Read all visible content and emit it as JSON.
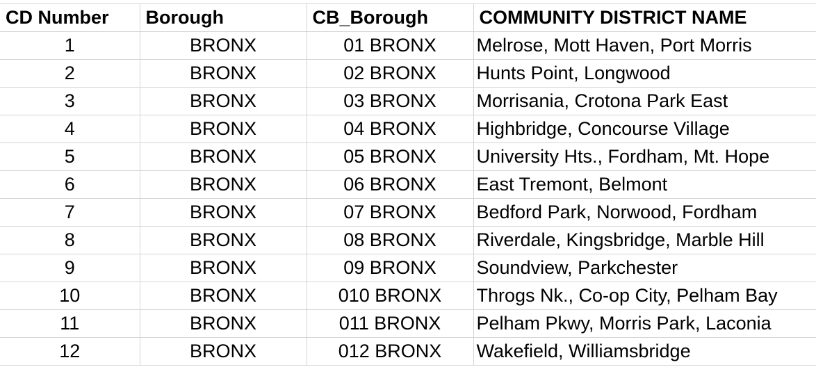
{
  "headers": {
    "cd_number": "CD Number",
    "borough": "Borough",
    "cb_borough": "CB_Borough",
    "community_district_name": "COMMUNITY DISTRICT NAME"
  },
  "rows": [
    {
      "cd_number": "1",
      "borough": "BRONX",
      "cb_borough": "01 BRONX",
      "name": "Melrose, Mott Haven, Port Morris"
    },
    {
      "cd_number": "2",
      "borough": "BRONX",
      "cb_borough": "02 BRONX",
      "name": "Hunts Point, Longwood"
    },
    {
      "cd_number": "3",
      "borough": "BRONX",
      "cb_borough": "03 BRONX",
      "name": "Morrisania, Crotona Park East"
    },
    {
      "cd_number": "4",
      "borough": "BRONX",
      "cb_borough": "04 BRONX",
      "name": "Highbridge, Concourse Village"
    },
    {
      "cd_number": "5",
      "borough": "BRONX",
      "cb_borough": "05 BRONX",
      "name": "University Hts., Fordham, Mt. Hope"
    },
    {
      "cd_number": "6",
      "borough": "BRONX",
      "cb_borough": "06 BRONX",
      "name": "East Tremont, Belmont"
    },
    {
      "cd_number": "7",
      "borough": "BRONX",
      "cb_borough": "07 BRONX",
      "name": "Bedford Park, Norwood, Fordham"
    },
    {
      "cd_number": "8",
      "borough": "BRONX",
      "cb_borough": "08 BRONX",
      "name": "Riverdale, Kingsbridge, Marble Hill"
    },
    {
      "cd_number": "9",
      "borough": "BRONX",
      "cb_borough": "09 BRONX",
      "name": "Soundview, Parkchester"
    },
    {
      "cd_number": "10",
      "borough": "BRONX",
      "cb_borough": "010 BRONX",
      "name": "Throgs Nk., Co-op City, Pelham Bay"
    },
    {
      "cd_number": "11",
      "borough": "BRONX",
      "cb_borough": "011 BRONX",
      "name": "Pelham Pkwy, Morris Park, Laconia"
    },
    {
      "cd_number": "12",
      "borough": "BRONX",
      "cb_borough": "012 BRONX",
      "name": "Wakefield, Williamsbridge"
    }
  ]
}
